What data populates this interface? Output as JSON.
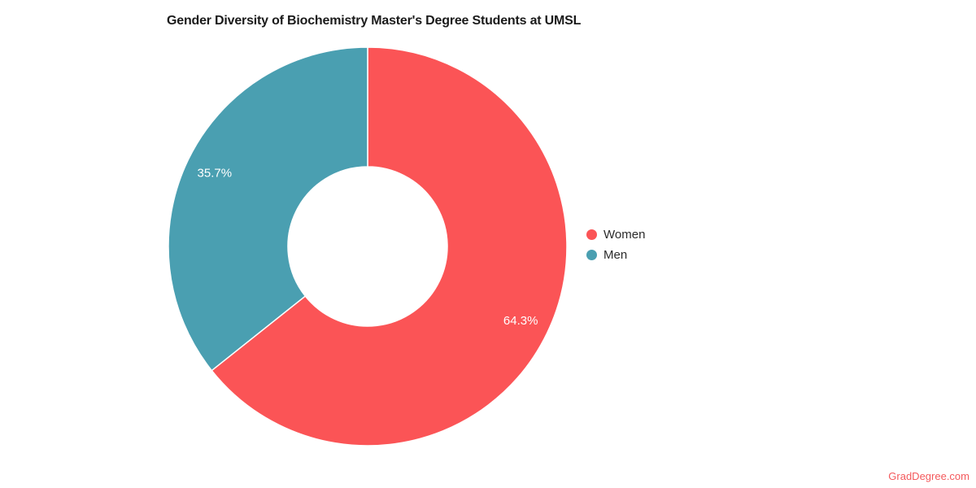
{
  "chart_data": {
    "type": "pie",
    "subtype": "donut",
    "title": "Gender Diversity of Biochemistry Master's Degree Students at UMSL",
    "labels": [
      "Women",
      "Men"
    ],
    "values": [
      64.3,
      35.7
    ],
    "unit": "%",
    "value_labels": [
      "64.3%",
      "35.7%"
    ],
    "colors": [
      "#FB5456",
      "#4A9FB1"
    ],
    "slice_label_color": "#FFFFFF",
    "slice_border_color": "#FFFFFF",
    "start_angle": "top",
    "direction": "clockwise",
    "donut_hole_ratio": 0.4,
    "legend_position": "right-center"
  },
  "watermark": {
    "text": "GradDegree.com",
    "color": "#F4595C"
  }
}
